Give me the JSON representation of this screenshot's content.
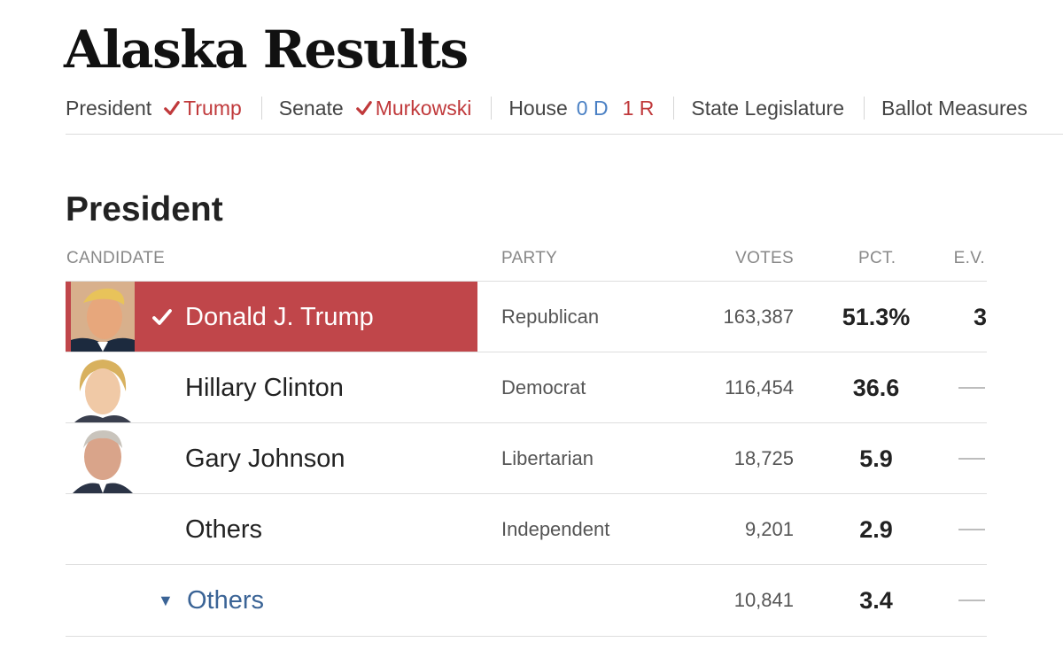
{
  "page": {
    "title": "Alaska Results"
  },
  "nav": {
    "president": {
      "label": "President",
      "winner": "Trump"
    },
    "senate": {
      "label": "Senate",
      "winner": "Murkowski"
    },
    "house": {
      "label": "House",
      "dem": "0 D",
      "rep": "1 R"
    },
    "state_legislature": {
      "label": "State Legislature"
    },
    "ballot_measures": {
      "label": "Ballot Measures"
    }
  },
  "section": {
    "title": "President",
    "columns": {
      "candidate": "CANDIDATE",
      "party": "PARTY",
      "votes": "VOTES",
      "pct": "PCT.",
      "ev": "E.V."
    },
    "rows": [
      {
        "name": "Donald J. Trump",
        "party": "Republican",
        "votes": "163,387",
        "pct": "51.3%",
        "ev": "3",
        "winner": true
      },
      {
        "name": "Hillary Clinton",
        "party": "Democrat",
        "votes": "116,454",
        "pct": "36.6",
        "ev": ""
      },
      {
        "name": "Gary Johnson",
        "party": "Libertarian",
        "votes": "18,725",
        "pct": "5.9",
        "ev": ""
      },
      {
        "name": "Others",
        "party": "Independent",
        "votes": "9,201",
        "pct": "2.9",
        "ev": ""
      },
      {
        "name": "Others",
        "party": "",
        "votes": "10,841",
        "pct": "3.4",
        "ev": ""
      }
    ]
  },
  "colors": {
    "winner_red": "#c0464a",
    "republican": "#c0393b",
    "democrat": "#4a80c4",
    "link": "#3b6496"
  }
}
